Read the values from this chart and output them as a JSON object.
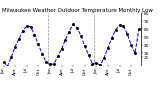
{
  "title": "Milwaukee Weather Outdoor Temperature Monthly Low",
  "line_color": "#0000cc",
  "marker_color": "#000000",
  "background_color": "#ffffff",
  "grid_color": "#888888",
  "ylim": [
    15,
    80
  ],
  "yticks": [
    25,
    30,
    40,
    50,
    60,
    70,
    80
  ],
  "ytick_labels": [
    "25",
    "30",
    "40",
    "50",
    "60",
    "70",
    "80"
  ],
  "values": [
    19,
    14,
    25,
    38,
    48,
    58,
    64,
    63,
    53,
    41,
    29,
    19,
    17,
    16,
    26,
    35,
    47,
    57,
    66,
    62,
    52,
    39,
    28,
    17,
    18,
    15,
    24,
    37,
    49,
    59,
    65,
    64,
    54,
    40,
    30,
    60
  ],
  "n_total": 36,
  "vline_positions": [
    11.5,
    23.5
  ],
  "title_fontsize": 4.0,
  "tick_fontsize": 3.2,
  "xtick_step": 3
}
